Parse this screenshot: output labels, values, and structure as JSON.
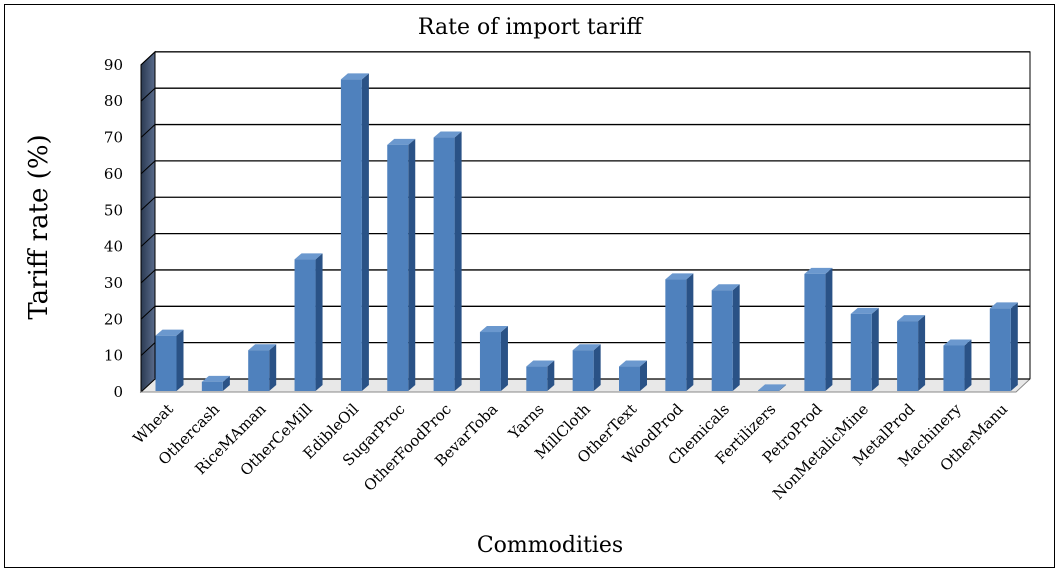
{
  "chart_data": {
    "type": "bar",
    "title": "Rate of import tariff",
    "xlabel": "Commodities",
    "ylabel": "Tariff  rate (%)",
    "ylim": [
      0,
      90
    ],
    "yticks": [
      0,
      10,
      20,
      30,
      40,
      50,
      60,
      70,
      80,
      90
    ],
    "grid": true,
    "categories": [
      "Wheat",
      "Othercash",
      "RiceMAman",
      "OtherCeMill",
      "EdibleOil",
      "SugarProc",
      "OtherFoodProc",
      "BevarToba",
      "Yarns",
      "MillCloth",
      "OtherText",
      "WoodProd",
      "Chemicals",
      "Fertilizers",
      "PetroProd",
      "NonMetalicMine",
      "MetalProd",
      "Machinery",
      "OtherManu"
    ],
    "values": [
      15.5,
      2.8,
      11.5,
      36.5,
      86,
      68,
      70,
      16.5,
      7,
      11.5,
      7,
      31,
      28,
      0,
      32.5,
      21.5,
      19.5,
      12.8,
      23
    ],
    "colors": {
      "bar_front": "#4F81BD",
      "bar_side": "#2A5286",
      "bar_top": "#6B98CE",
      "grid": "#000000",
      "wall": "#FFFFFF"
    }
  }
}
